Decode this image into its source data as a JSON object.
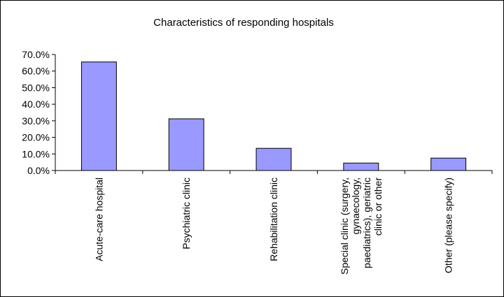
{
  "chart_data": {
    "type": "bar",
    "title": "Characteristics of responding hospitals",
    "xlabel": "",
    "ylabel": "",
    "ylim": [
      0,
      0.7
    ],
    "y_ticks": [
      "0.0%",
      "10.0%",
      "20.0%",
      "30.0%",
      "40.0%",
      "50.0%",
      "60.0%",
      "70.0%"
    ],
    "grid": false,
    "legend": "none",
    "bar_color": "#9999ff",
    "categories": [
      [
        "Acute-care hospital"
      ],
      [
        "Psychiatric clinic"
      ],
      [
        "Rehabilitation clinic"
      ],
      [
        "Special clinic (surgery,",
        "gynaecology,",
        "paediatrics), geriatric",
        "clinic or other"
      ],
      [
        "Other (please specify)"
      ]
    ],
    "values": [
      0.655,
      0.312,
      0.134,
      0.045,
      0.075
    ]
  }
}
